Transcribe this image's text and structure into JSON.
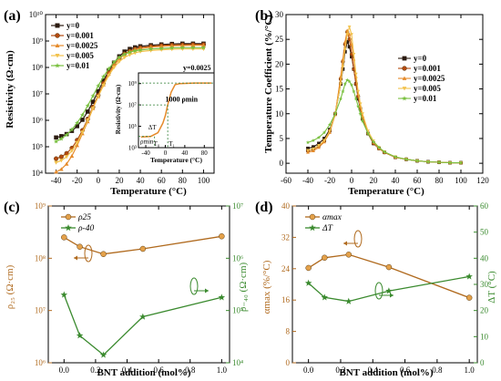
{
  "chart_data": [
    {
      "panel": "(a)",
      "type": "line",
      "xlabel": "Temperature (°C)",
      "ylabel": "Resistivity (Ω·cm)",
      "xlim": [
        -50,
        110
      ],
      "ylim_log10": [
        4,
        10
      ],
      "x_ticks": [
        "-40",
        "-20",
        "0",
        "20",
        "40",
        "60",
        "80",
        "100"
      ],
      "y_ticks": [
        "10⁴",
        "10⁵",
        "10⁶",
        "10⁷",
        "10⁸",
        "10⁹",
        "10¹⁰"
      ],
      "legend_position": "top-left",
      "x": [
        -40,
        -35,
        -30,
        -25,
        -20,
        -15,
        -10,
        -5,
        0,
        5,
        10,
        15,
        20,
        25,
        30,
        35,
        40,
        50,
        60,
        70,
        80,
        90,
        100
      ],
      "series": [
        {
          "name": "y=0",
          "color": "#2b1b10",
          "log10_values": [
            5.35,
            5.4,
            5.48,
            5.6,
            5.78,
            6.02,
            6.33,
            6.7,
            7.1,
            7.5,
            7.88,
            8.18,
            8.42,
            8.6,
            8.7,
            8.76,
            8.8,
            8.84,
            8.87,
            8.89,
            8.9,
            8.9,
            8.9
          ]
        },
        {
          "name": "y=0.001",
          "color": "#b34a0e",
          "log10_values": [
            4.55,
            4.62,
            4.75,
            4.95,
            5.25,
            5.62,
            6.05,
            6.5,
            6.95,
            7.4,
            7.8,
            8.1,
            8.35,
            8.52,
            8.62,
            8.7,
            8.75,
            8.8,
            8.83,
            8.85,
            8.86,
            8.87,
            8.87
          ]
        },
        {
          "name": "y=0.0025",
          "color": "#e58a2a",
          "log10_values": [
            4.05,
            4.15,
            4.35,
            4.65,
            5.05,
            5.5,
            5.95,
            6.45,
            6.9,
            7.35,
            7.75,
            8.08,
            8.32,
            8.5,
            8.6,
            8.68,
            8.72,
            8.77,
            8.8,
            8.82,
            8.83,
            8.84,
            8.84
          ]
        },
        {
          "name": "y=0.005",
          "color": "#f2c24d",
          "log10_values": [
            4.4,
            4.48,
            4.62,
            4.85,
            5.15,
            5.55,
            6.0,
            6.45,
            6.9,
            7.32,
            7.7,
            8.0,
            8.22,
            8.38,
            8.48,
            8.55,
            8.6,
            8.64,
            8.67,
            8.69,
            8.7,
            8.7,
            8.7
          ]
        },
        {
          "name": "y=0.01",
          "color": "#79c040",
          "log10_values": [
            5.2,
            5.3,
            5.45,
            5.65,
            5.9,
            6.2,
            6.55,
            6.92,
            7.3,
            7.65,
            7.95,
            8.2,
            8.38,
            8.5,
            8.58,
            8.63,
            8.66,
            8.7,
            8.72,
            8.74,
            8.75,
            8.75,
            8.75
          ]
        }
      ],
      "inset": {
        "xlabel": "Temperature (°C)",
        "ylabel": "Resistivity (Ω·cm)",
        "x_ticks": [
          "-40",
          "0",
          "40",
          "80"
        ],
        "y_ticks": [
          "10³",
          "10⁵",
          "10⁷",
          "10⁹"
        ],
        "series_label": "y=0.0025",
        "annotations": [
          "1000 ρmin",
          "ΔT",
          "ρmin",
          "T₀",
          "T₁"
        ]
      }
    },
    {
      "panel": "(b)",
      "type": "line",
      "xlabel": "Temperature (°C)",
      "ylabel": "Temperature Coefficient (%/°C)",
      "xlim": [
        -60,
        120
      ],
      "ylim": [
        -2,
        30
      ],
      "x_ticks": [
        "-60",
        "-40",
        "-20",
        "0",
        "20",
        "40",
        "60",
        "80",
        "100",
        "120"
      ],
      "y_ticks": [
        "0",
        "5",
        "10",
        "15",
        "20",
        "25",
        "30"
      ],
      "legend_position": "right",
      "x": [
        -40,
        -35,
        -30,
        -25,
        -20,
        -15,
        -10,
        -8,
        -6,
        -4,
        -2,
        0,
        2,
        4,
        6,
        8,
        10,
        15,
        20,
        25,
        30,
        40,
        50,
        60,
        70,
        80,
        90,
        100
      ],
      "series": [
        {
          "name": "y=0",
          "color": "#2b1b10",
          "values": [
            3,
            3.3,
            4,
            5,
            6.8,
            10,
            16,
            19,
            22.5,
            24.5,
            23.5,
            21.5,
            19,
            16,
            13,
            11,
            9,
            6,
            4,
            3,
            2.2,
            1.2,
            0.8,
            0.5,
            0.3,
            0.2,
            0.1,
            0.1
          ]
        },
        {
          "name": "y=0.001",
          "color": "#b34a0e",
          "values": [
            2.5,
            2.8,
            3.5,
            4.5,
            6.5,
            10,
            17,
            20.5,
            24,
            26.5,
            25,
            22,
            19,
            16,
            13.5,
            11,
            9,
            6,
            4,
            3,
            2.2,
            1.2,
            0.8,
            0.5,
            0.3,
            0.2,
            0.1,
            0.1
          ]
        },
        {
          "name": "y=0.0025",
          "color": "#e58a2a",
          "values": [
            2.2,
            2.5,
            3.2,
            4.3,
            6.2,
            9.8,
            17.5,
            21,
            24.5,
            26.8,
            26,
            24,
            21,
            17.5,
            14,
            11.5,
            9.5,
            6.2,
            4.2,
            3,
            2.2,
            1.2,
            0.8,
            0.5,
            0.3,
            0.2,
            0.1,
            0.1
          ]
        },
        {
          "name": "y=0.005",
          "color": "#f2c24d",
          "values": [
            2.6,
            2.9,
            3.6,
            4.6,
            6.5,
            10,
            16,
            19.5,
            23,
            26,
            27.5,
            26,
            22,
            18,
            14.5,
            12,
            10,
            6.5,
            4.5,
            3.2,
            2.3,
            1.3,
            0.8,
            0.5,
            0.3,
            0.2,
            0.1,
            0.1
          ]
        },
        {
          "name": "y=0.01",
          "color": "#79c040",
          "values": [
            4.2,
            4.6,
            5.2,
            6.2,
            7.8,
            10,
            13,
            14.5,
            16,
            16.8,
            16.5,
            15.8,
            14.5,
            13,
            11.5,
            10,
            8.5,
            6,
            4.3,
            3.2,
            2.3,
            1.3,
            0.8,
            0.5,
            0.3,
            0.2,
            0.1,
            0.1
          ]
        }
      ]
    },
    {
      "panel": "(c)",
      "type": "line",
      "xlabel": "BNT addition (mol%)",
      "ylabel_left": "ρ₂₅ (Ω·cm)",
      "ylabel_right": "ρ₋₄₀ (Ω·cm)",
      "xlim": [
        -0.1,
        1.05
      ],
      "ylim_left_log10": [
        6,
        9
      ],
      "ylim_right_log10": [
        4,
        7
      ],
      "x_ticks": [
        "0.0",
        "0.2",
        "0.4",
        "0.6",
        "0.8",
        "1.0"
      ],
      "y_ticks_left": [
        "10⁶",
        "10⁷",
        "10⁸",
        "10⁹"
      ],
      "y_ticks_right": [
        "10⁴",
        "10⁵",
        "10⁶",
        "10⁷"
      ],
      "legend_position": "top-left",
      "x": [
        0,
        0.1,
        0.25,
        0.5,
        1.0
      ],
      "series": [
        {
          "name": "ρ25",
          "axis": "left",
          "color": "#b06a1e",
          "log10_values": [
            8.4,
            8.22,
            8.08,
            8.18,
            8.42
          ]
        },
        {
          "name": "ρ-40",
          "axis": "right",
          "color": "#3a8a2e",
          "log10_values": [
            5.3,
            4.52,
            4.15,
            4.88,
            5.25
          ]
        }
      ]
    },
    {
      "panel": "(d)",
      "type": "line",
      "xlabel": "BNT addition (mol%)",
      "ylabel_left": "αmax (%/°C)",
      "ylabel_right": "ΔT (°C)",
      "xlim": [
        -0.1,
        1.05
      ],
      "ylim_left": [
        0,
        40
      ],
      "ylim_right": [
        0,
        60
      ],
      "x_ticks": [
        "0.0",
        "0.2",
        "0.4",
        "0.6",
        "0.8",
        "1.0"
      ],
      "y_ticks_left": [
        "0",
        "8",
        "16",
        "24",
        "32",
        "40"
      ],
      "y_ticks_right": [
        "0",
        "10",
        "20",
        "30",
        "40",
        "50",
        "60"
      ],
      "legend_position": "top-left",
      "x": [
        0,
        0.1,
        0.25,
        0.5,
        1.0
      ],
      "series": [
        {
          "name": "αmax",
          "axis": "left",
          "color": "#b06a1e",
          "values": [
            24.2,
            26.8,
            27.6,
            24.4,
            16.6
          ]
        },
        {
          "name": "ΔT",
          "axis": "right",
          "color": "#3a8a2e",
          "values": [
            30.5,
            25,
            23.5,
            27.5,
            33
          ]
        }
      ]
    }
  ]
}
